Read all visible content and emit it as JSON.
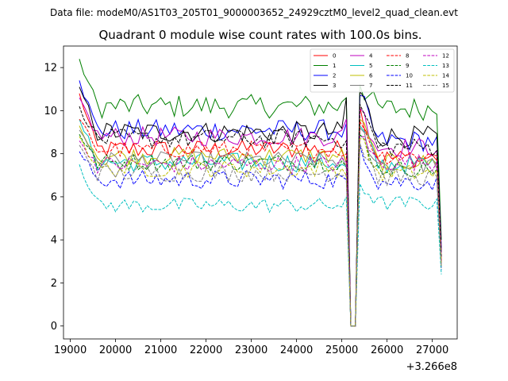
{
  "chart_data": {
    "type": "line",
    "suptitle": "Data file: modeM0/AS1T03_205T01_9000003652_24929cztM0_level2_quad_clean.evt",
    "title": "Quadrant 0 module wise count rates with 100.0s bins.",
    "xlabel": "",
    "ylabel": "",
    "x_offset_label": "+3.266e8",
    "xlim": [
      18850,
      27550
    ],
    "ylim": [
      -0.6,
      13.0
    ],
    "xticks": [
      19000,
      20000,
      21000,
      22000,
      23000,
      24000,
      25000,
      26000,
      27000
    ],
    "yticks": [
      0,
      2,
      4,
      6,
      8,
      10,
      12
    ],
    "grid": false,
    "legend_position": "top-right",
    "x_start": 19200,
    "x_step": 100,
    "gap_start_index": 60,
    "gap_length": 2,
    "series": [
      {
        "name": "0",
        "color": "#ff0000",
        "dash": "solid",
        "start": 10.8,
        "level": 8.2,
        "noise": 0.45,
        "pre_gap": 7.6,
        "peak": 10.2,
        "post": 7.8,
        "end": 3.0
      },
      {
        "name": "1",
        "color": "#008000",
        "dash": "solid",
        "start": 12.4,
        "level": 10.2,
        "noise": 0.55,
        "pre_gap": 10.6,
        "peak": 11.2,
        "post": 10.1,
        "end": 4.0
      },
      {
        "name": "2",
        "color": "#0000ff",
        "dash": "solid",
        "start": 11.4,
        "level": 9.1,
        "noise": 0.5,
        "pre_gap": 9.4,
        "peak": 10.7,
        "post": 8.6,
        "end": 3.6
      },
      {
        "name": "3",
        "color": "#000000",
        "dash": "solid",
        "start": 11.1,
        "level": 9.0,
        "noise": 0.5,
        "pre_gap": 10.6,
        "peak": 10.9,
        "post": 8.8,
        "end": 3.5
      },
      {
        "name": "4",
        "color": "#bf00bf",
        "dash": "solid",
        "start": 10.6,
        "level": 8.8,
        "noise": 0.45,
        "pre_gap": 9.6,
        "peak": 10.1,
        "post": 8.3,
        "end": 3.4
      },
      {
        "name": "5",
        "color": "#00bfbf",
        "dash": "solid",
        "start": 9.6,
        "level": 7.6,
        "noise": 0.45,
        "pre_gap": 7.4,
        "peak": 9.3,
        "post": 7.5,
        "end": 2.9
      },
      {
        "name": "6",
        "color": "#bfbf00",
        "dash": "solid",
        "start": 9.3,
        "level": 7.9,
        "noise": 0.4,
        "pre_gap": 7.6,
        "peak": 9.6,
        "post": 7.6,
        "end": 3.0
      },
      {
        "name": "7",
        "color": "#808080",
        "dash": "solid",
        "start": 9.1,
        "level": 7.7,
        "noise": 0.4,
        "pre_gap": 7.4,
        "peak": 9.2,
        "post": 7.5,
        "end": 2.9
      },
      {
        "name": "8",
        "color": "#ff0000",
        "dash": "dashed",
        "start": 9.6,
        "level": 8.2,
        "noise": 0.4,
        "pre_gap": 8.0,
        "peak": 9.5,
        "post": 7.9,
        "end": 3.0
      },
      {
        "name": "9",
        "color": "#008000",
        "dash": "dashed",
        "start": 8.9,
        "level": 7.6,
        "noise": 0.4,
        "pre_gap": 7.4,
        "peak": 8.9,
        "post": 7.3,
        "end": 2.8
      },
      {
        "name": "10",
        "color": "#0000ff",
        "dash": "dashed",
        "start": 8.1,
        "level": 6.8,
        "noise": 0.45,
        "pre_gap": 6.8,
        "peak": 8.4,
        "post": 6.7,
        "end": 2.6
      },
      {
        "name": "11",
        "color": "#000000",
        "dash": "dashed",
        "start": 10.2,
        "level": 8.7,
        "noise": 0.45,
        "pre_gap": 8.6,
        "peak": 10.3,
        "post": 8.3,
        "end": 3.2
      },
      {
        "name": "12",
        "color": "#bf00bf",
        "dash": "dashed",
        "start": 8.6,
        "level": 7.5,
        "noise": 0.4,
        "pre_gap": 7.6,
        "peak": 8.8,
        "post": 7.6,
        "end": 2.9
      },
      {
        "name": "13",
        "color": "#00bfbf",
        "dash": "dashed",
        "start": 7.5,
        "level": 5.6,
        "noise": 0.35,
        "pre_gap": 6.0,
        "peak": 6.6,
        "post": 5.7,
        "end": 2.4
      },
      {
        "name": "14",
        "color": "#bfbf00",
        "dash": "dashed",
        "start": 8.8,
        "level": 7.3,
        "noise": 0.4,
        "pre_gap": 7.0,
        "peak": 8.7,
        "post": 7.1,
        "end": 2.8
      },
      {
        "name": "15",
        "color": "#808080",
        "dash": "dashed",
        "start": 8.4,
        "level": 7.1,
        "noise": 0.4,
        "pre_gap": 7.0,
        "peak": 8.5,
        "post": 6.9,
        "end": 2.7
      }
    ]
  }
}
